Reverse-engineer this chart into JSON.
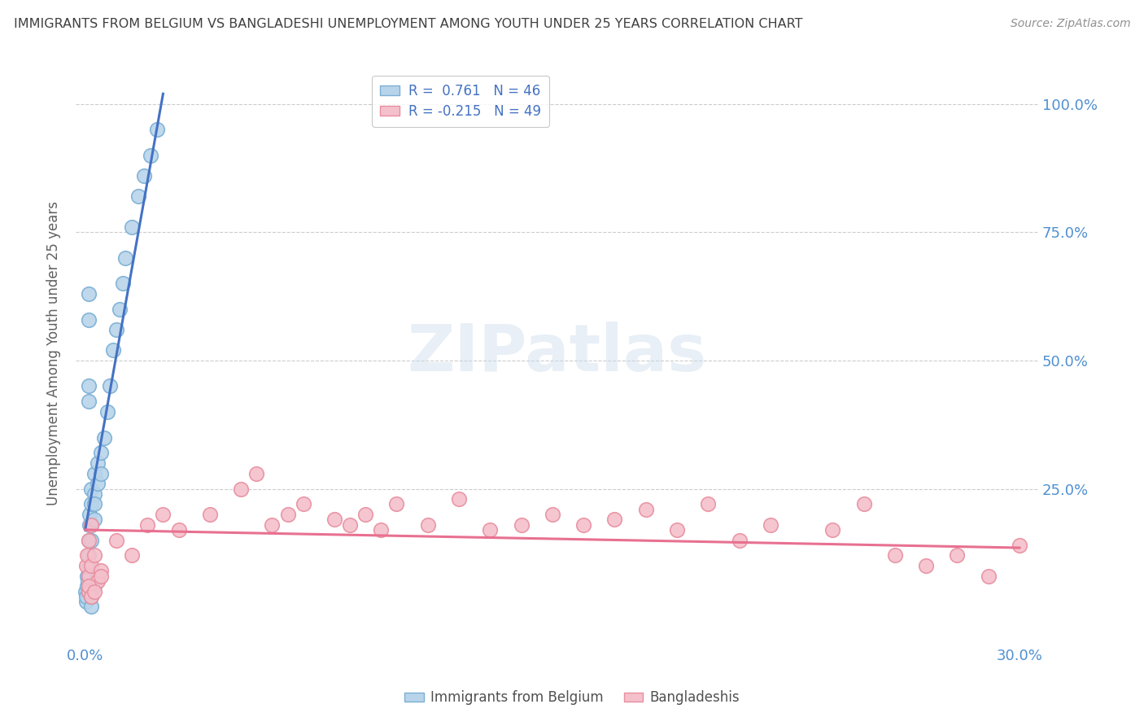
{
  "title": "IMMIGRANTS FROM BELGIUM VS BANGLADESHI UNEMPLOYMENT AMONG YOUTH UNDER 25 YEARS CORRELATION CHART",
  "source": "Source: ZipAtlas.com",
  "ylabel": "Unemployment Among Youth under 25 years",
  "ytick_labels": [
    "100.0%",
    "75.0%",
    "50.0%",
    "25.0%"
  ],
  "ytick_values": [
    1.0,
    0.75,
    0.5,
    0.25
  ],
  "xlim": [
    0.0,
    0.3
  ],
  "ylim": [
    0.0,
    1.08
  ],
  "watermark": "ZIPatlas",
  "belgium_color": "#7bafd4",
  "belgium_face": "#b8d4ea",
  "bangladesh_color": "#e88fa0",
  "bangladesh_face": "#f4c0cb",
  "trend_belgium_color": "#4472c4",
  "trend_bangladesh_color": "#e87090",
  "background_color": "#ffffff",
  "grid_color": "#cccccc",
  "title_color": "#404040",
  "axis_label_color": "#5090d0",
  "right_axis_color": "#5090d0",
  "legend_text_color": "#4472c4",
  "bel_scatter_x": [
    0.0002,
    0.0003,
    0.0004,
    0.0005,
    0.0006,
    0.0008,
    0.001,
    0.001,
    0.001,
    0.001,
    0.001,
    0.0015,
    0.0015,
    0.002,
    0.002,
    0.002,
    0.002,
    0.003,
    0.003,
    0.003,
    0.003,
    0.004,
    0.004,
    0.005,
    0.005,
    0.006,
    0.007,
    0.008,
    0.009,
    0.01,
    0.011,
    0.012,
    0.013,
    0.015,
    0.017,
    0.019,
    0.021,
    0.023,
    0.001,
    0.001,
    0.002,
    0.002,
    0.003,
    0.004,
    0.001,
    0.001
  ],
  "bel_scatter_y": [
    0.05,
    0.03,
    0.04,
    0.06,
    0.08,
    0.07,
    0.05,
    0.1,
    0.12,
    0.15,
    0.08,
    0.18,
    0.2,
    0.22,
    0.25,
    0.18,
    0.15,
    0.24,
    0.28,
    0.22,
    0.19,
    0.3,
    0.26,
    0.32,
    0.28,
    0.35,
    0.4,
    0.45,
    0.52,
    0.56,
    0.6,
    0.65,
    0.7,
    0.76,
    0.82,
    0.86,
    0.9,
    0.95,
    0.58,
    0.63,
    0.02,
    0.04,
    0.06,
    0.08,
    0.42,
    0.45
  ],
  "ban_scatter_x": [
    0.0003,
    0.0005,
    0.001,
    0.001,
    0.001,
    0.002,
    0.002,
    0.003,
    0.004,
    0.005,
    0.01,
    0.015,
    0.02,
    0.025,
    0.03,
    0.04,
    0.05,
    0.055,
    0.06,
    0.065,
    0.07,
    0.08,
    0.085,
    0.09,
    0.095,
    0.1,
    0.11,
    0.12,
    0.13,
    0.14,
    0.15,
    0.16,
    0.17,
    0.18,
    0.19,
    0.2,
    0.21,
    0.22,
    0.24,
    0.25,
    0.26,
    0.27,
    0.28,
    0.29,
    0.3,
    0.001,
    0.002,
    0.003,
    0.005
  ],
  "ban_scatter_y": [
    0.1,
    0.12,
    0.15,
    0.08,
    0.05,
    0.18,
    0.1,
    0.12,
    0.07,
    0.09,
    0.15,
    0.12,
    0.18,
    0.2,
    0.17,
    0.2,
    0.25,
    0.28,
    0.18,
    0.2,
    0.22,
    0.19,
    0.18,
    0.2,
    0.17,
    0.22,
    0.18,
    0.23,
    0.17,
    0.18,
    0.2,
    0.18,
    0.19,
    0.21,
    0.17,
    0.22,
    0.15,
    0.18,
    0.17,
    0.22,
    0.12,
    0.1,
    0.12,
    0.08,
    0.14,
    0.06,
    0.04,
    0.05,
    0.08
  ],
  "trend_bel_x0": 0.0,
  "trend_bel_x1": 0.025,
  "trend_bel_y0": 0.17,
  "trend_bel_y1": 1.02,
  "trend_ban_x0": 0.0,
  "trend_ban_x1": 0.3,
  "trend_ban_y0": 0.17,
  "trend_ban_y1": 0.135
}
